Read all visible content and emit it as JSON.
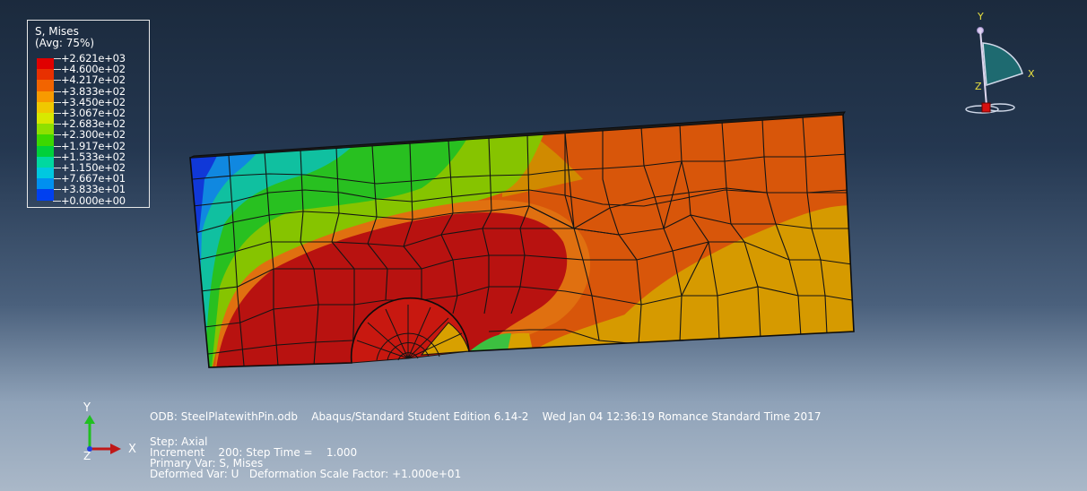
{
  "legend": {
    "title_line1": "S, Mises",
    "title_line2": "(Avg: 75%)",
    "entries": [
      {
        "value": "+2.621e+03",
        "color": "#e00000"
      },
      {
        "value": "+4.600e+02",
        "color": "#e83000"
      },
      {
        "value": "+4.217e+02",
        "color": "#f26400"
      },
      {
        "value": "+3.833e+02",
        "color": "#f89a00"
      },
      {
        "value": "+3.450e+02",
        "color": "#f0c800"
      },
      {
        "value": "+3.067e+02",
        "color": "#d8e800"
      },
      {
        "value": "+2.683e+02",
        "color": "#8ee000"
      },
      {
        "value": "+2.300e+02",
        "color": "#3cd800"
      },
      {
        "value": "+1.917e+02",
        "color": "#00d03a"
      },
      {
        "value": "+1.533e+02",
        "color": "#00d8a0"
      },
      {
        "value": "+1.150e+02",
        "color": "#00c8e0"
      },
      {
        "value": "+7.667e+01",
        "color": "#0090f0"
      },
      {
        "value": "+3.833e+01",
        "color": "#0040f0"
      },
      {
        "value": "+0.000e+00",
        "color": "#0000e0"
      }
    ]
  },
  "info": {
    "odb_line": "ODB: SteelPlatewithPin.odb    Abaqus/Standard Student Edition 6.14-2    Wed Jan 04 12:36:19 Romance Standard Time 2017",
    "step_line": "Step: Axial",
    "increment_line": "Increment    200: Step Time =    1.000",
    "primary_var_line": "Primary Var: S, Mises",
    "deformed_var_line": "Deformed Var: U   Deformation Scale Factor: +1.000e+01"
  },
  "triad": {
    "y_label": "Y",
    "x_label": "X",
    "z_label": "Z"
  },
  "colors": {
    "red": "#b01010",
    "orange_red": "#d44a08",
    "orange": "#d8a000",
    "yellow": "#c8c800",
    "green": "#4cc810",
    "cyan": "#18c8b0",
    "blue": "#1848d0"
  }
}
